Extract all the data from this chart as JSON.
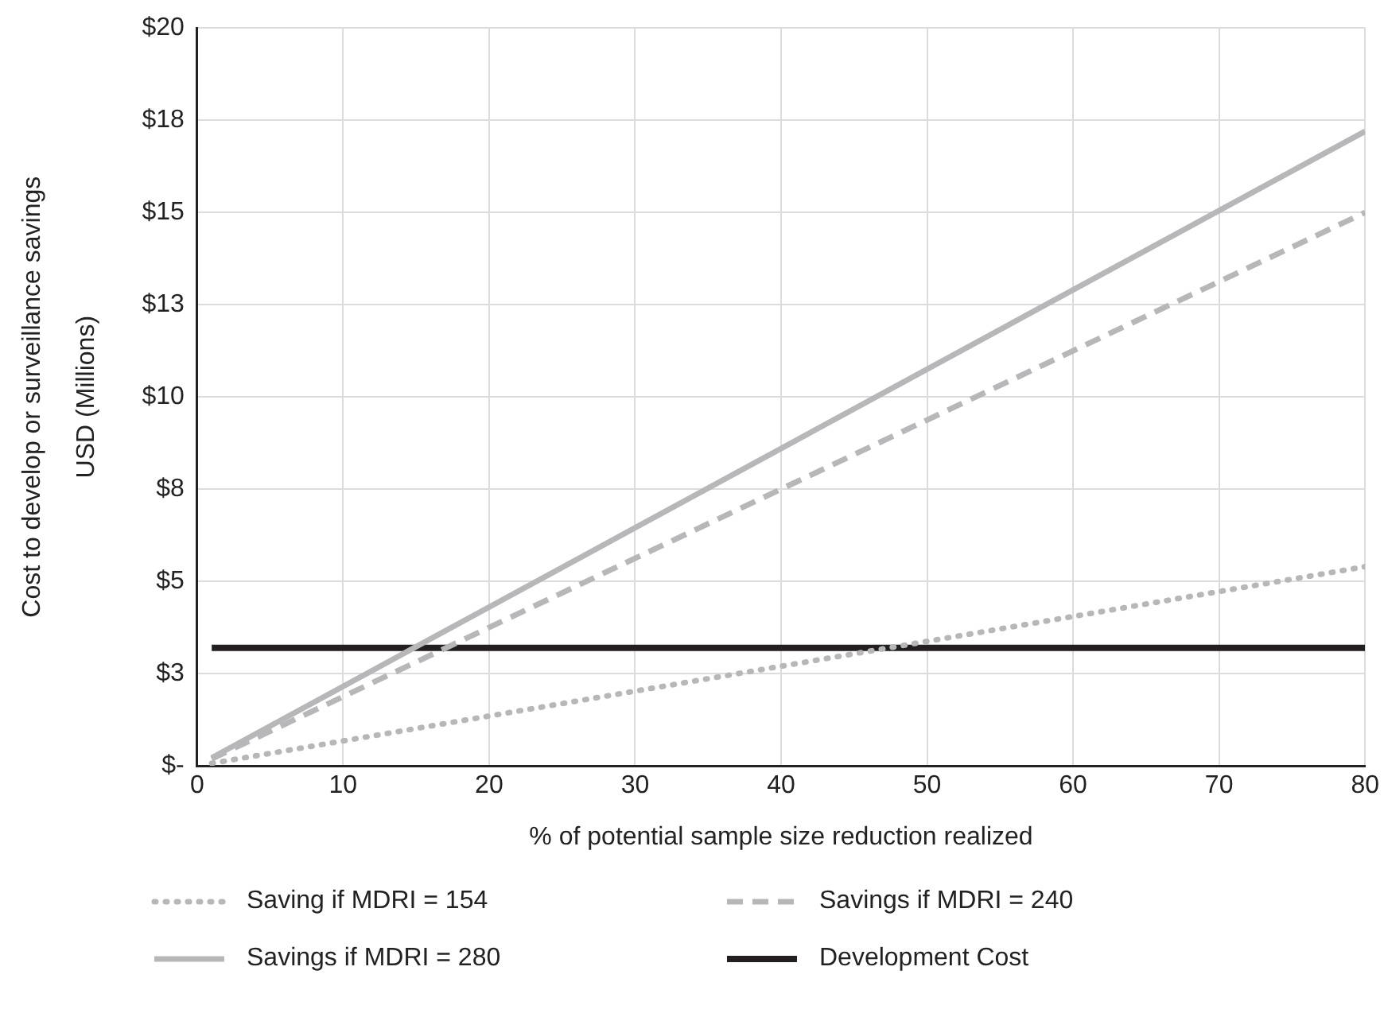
{
  "chart_data": {
    "type": "line",
    "xlabel": "% of potential sample size reduction realized",
    "ylabel": "Cost to develop or surveillance savings\nUSD (Millions)",
    "x": [
      1,
      80
    ],
    "series": [
      {
        "name": "Saving if MDRI = 154",
        "color": "#b7b7b9",
        "values": [
          0.07,
          5.4
        ],
        "line_style": "dotted"
      },
      {
        "name": "Savings if MDRI = 240",
        "color": "#b7b7b9",
        "values": [
          0.19,
          15.0
        ],
        "line_style": "dashed"
      },
      {
        "name": "Savings if MDRI = 280",
        "color": "#b7b7b9",
        "values": [
          0.22,
          17.2
        ],
        "line_style": "solid"
      },
      {
        "name": "Development Cost",
        "color": "#231f20",
        "values": [
          3.2,
          3.2
        ],
        "line_style": "solid"
      }
    ],
    "xlim": [
      0,
      80
    ],
    "xticks": [
      0,
      10,
      20,
      30,
      40,
      50,
      60,
      70,
      80
    ],
    "ylim": [
      0,
      20
    ],
    "yticks": [
      {
        "value": 0,
        "label": "$-"
      },
      {
        "value": 2.5,
        "label": "$3"
      },
      {
        "value": 5,
        "label": "$5"
      },
      {
        "value": 7.5,
        "label": "$8"
      },
      {
        "value": 10,
        "label": "$10"
      },
      {
        "value": 12.5,
        "label": "$13"
      },
      {
        "value": 15,
        "label": "$15"
      },
      {
        "value": 17.5,
        "label": "$18"
      },
      {
        "value": 20,
        "label": "$20"
      }
    ],
    "grid": true,
    "legend": "bottom",
    "marker": "none"
  }
}
